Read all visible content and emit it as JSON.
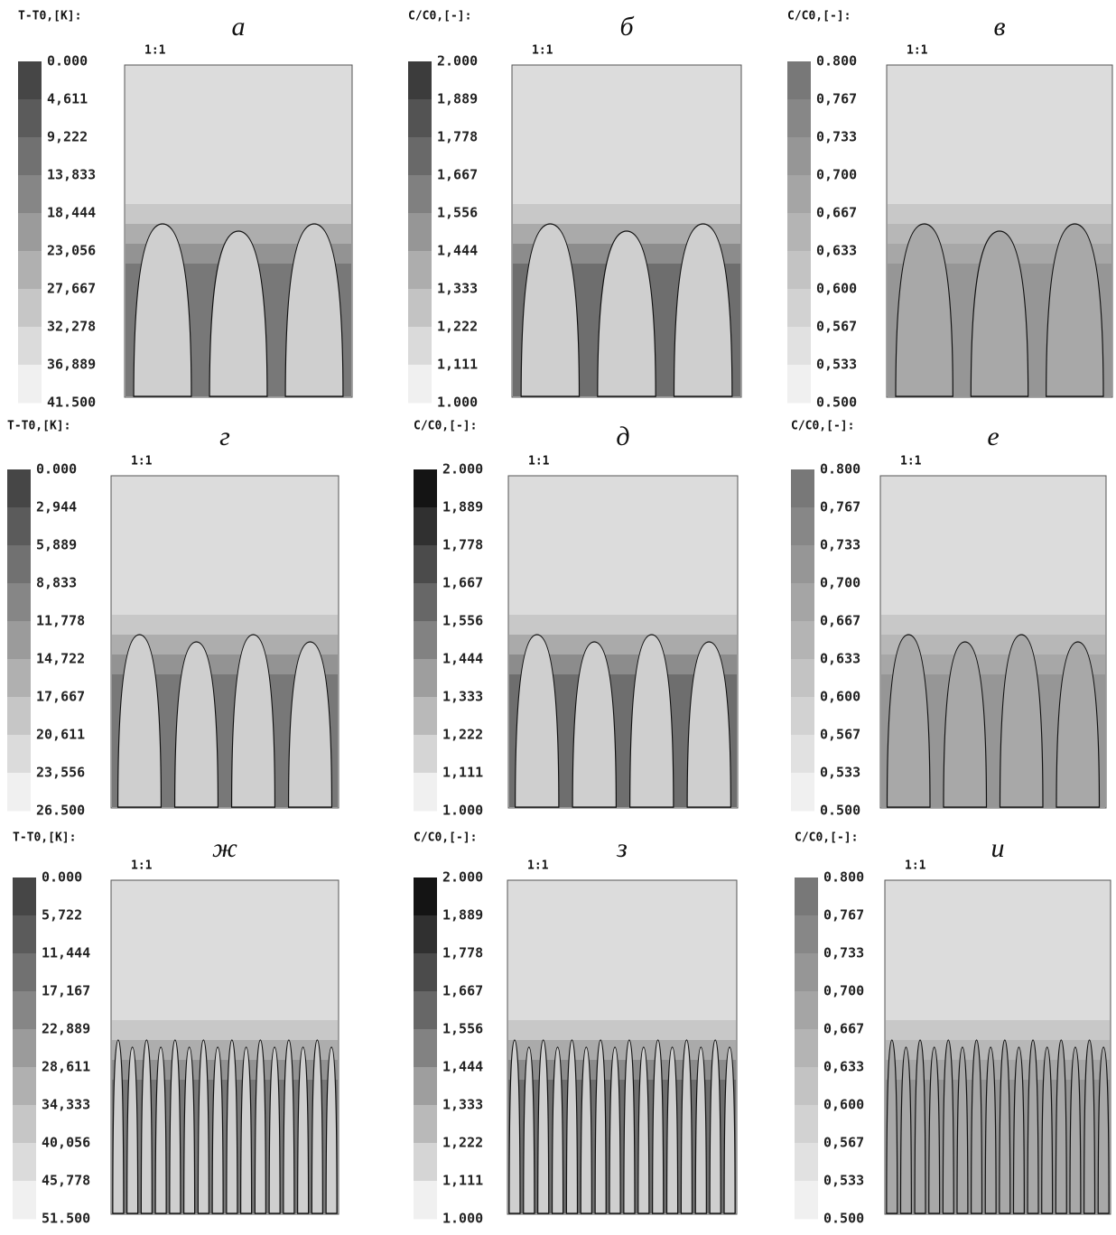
{
  "panels": [
    {
      "letter": "а",
      "bar_title": "T-T0,[K]:",
      "scale": "1:1",
      "ticks": [
        "0.000",
        "4,611",
        "9,222",
        "13,833",
        "18,444",
        "23,056",
        "27,667",
        "32,278",
        "36,889",
        "41.500"
      ]
    },
    {
      "letter": "б",
      "bar_title": "C/C0,[-]:",
      "scale": "1:1",
      "ticks": [
        "2.000",
        "1,889",
        "1,778",
        "1,667",
        "1,556",
        "1,444",
        "1,333",
        "1,222",
        "1,111",
        "1.000"
      ]
    },
    {
      "letter": "в",
      "bar_title": "C/C0,[-]:",
      "scale": "1:1",
      "ticks": [
        "0.800",
        "0,767",
        "0,733",
        "0,700",
        "0,667",
        "0,633",
        "0,600",
        "0,567",
        "0,533",
        "0.500"
      ]
    },
    {
      "letter": "г",
      "bar_title": "T-T0,[K]:",
      "scale": "1:1",
      "ticks": [
        "0.000",
        "2,944",
        "5,889",
        "8,833",
        "11,778",
        "14,722",
        "17,667",
        "20,611",
        "23,556",
        "26.500"
      ]
    },
    {
      "letter": "д",
      "bar_title": "C/C0,[-]:",
      "scale": "1:1",
      "ticks": [
        "2.000",
        "1,889",
        "1,778",
        "1,667",
        "1,556",
        "1,444",
        "1,333",
        "1,222",
        "1,111",
        "1.000"
      ]
    },
    {
      "letter": "е",
      "bar_title": "C/C0,[-]:",
      "scale": "1:1",
      "ticks": [
        "0.800",
        "0,767",
        "0,733",
        "0,700",
        "0,667",
        "0,633",
        "0,600",
        "0,567",
        "0,533",
        "0.500"
      ]
    },
    {
      "letter": "ж",
      "bar_title": "T-T0,[K]:",
      "scale": "1:1",
      "ticks": [
        "0.000",
        "5,722",
        "11,444",
        "17,167",
        "22,889",
        "28,611",
        "34,333",
        "40,056",
        "45,778",
        "51.500"
      ]
    },
    {
      "letter": "з",
      "bar_title": "C/C0,[-]:",
      "scale": "1:1",
      "ticks": [
        "2.000",
        "1,889",
        "1,778",
        "1,667",
        "1,556",
        "1,444",
        "1,333",
        "1,222",
        "1,111",
        "1.000"
      ]
    },
    {
      "letter": "и",
      "bar_title": "C/C0,[-]:",
      "scale": "1:1",
      "ticks": [
        "0.800",
        "0,767",
        "0,733",
        "0,700",
        "0,667",
        "0,633",
        "0,600",
        "0,567",
        "0,533",
        "0.500"
      ]
    }
  ]
}
